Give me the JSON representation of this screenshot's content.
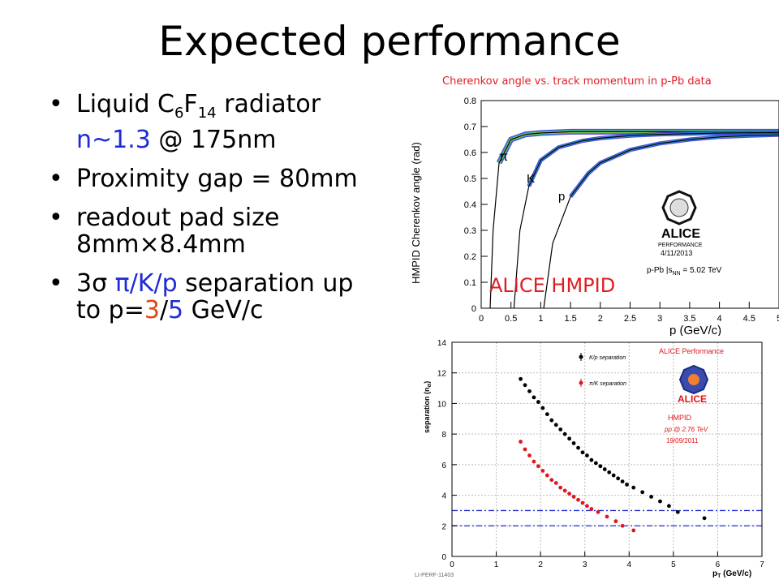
{
  "slide": {
    "title": "Expected performance",
    "bullets": [
      {
        "liquid": "Liquid C",
        "sub6": "6",
        "f": "F",
        "sub14": "14",
        "radiator": " radiator",
        "n_value": "n~1.3",
        "nm": " @ 175nm"
      },
      {
        "text": "Proximity gap = 80mm"
      },
      {
        "line1": "readout pad size",
        "line2": "8mm×8.4mm"
      },
      {
        "three_sigma": "3σ ",
        "pikp": "π/K/p",
        "sep": " separation up",
        "to": "to p=",
        "v3": "3",
        "slash": "/",
        "v5": "5",
        "unit": " GeV/c"
      }
    ],
    "top_plot": {
      "caption": "Cherenkov angle vs. track momentum in p-Pb data",
      "overlay_label": "ALICE HMPID",
      "ylabel": "HMPID Cherenkov angle (rad)",
      "xlabel": "p (GeV/c)",
      "yticks": [
        "0",
        "0.1",
        "0.2",
        "0.3",
        "0.4",
        "0.5",
        "0.6",
        "0.7",
        "0.8"
      ],
      "xticks": [
        "0",
        "0.5",
        "1",
        "1.5",
        "2",
        "2.5",
        "3",
        "3.5",
        "4",
        "4.5",
        "5"
      ],
      "particles": [
        "π",
        "K",
        "p"
      ],
      "logo_text": "ALICE",
      "performance": "PERFORMANCE",
      "date": "4/11/2013",
      "system": "p-Pb |s",
      "system_sub": "NN",
      "energy": " = 5.02 TeV"
    },
    "bottom_plot": {
      "ylabel": "separation (n",
      "ylabel_sub": "σ",
      "xlabel": "p",
      "xlabel_sub": "T",
      "xlabel_unit": " (GeV/c)",
      "yticks": [
        "0",
        "2",
        "4",
        "6",
        "8",
        "10",
        "12",
        "14"
      ],
      "xticks": [
        "0",
        "1",
        "2",
        "3",
        "4",
        "5",
        "6",
        "7"
      ],
      "legend_kp": "K/p separation",
      "legend_pik": "π/K separation",
      "header": "ALICE Performance",
      "logo_text": "ALICE",
      "hmpid": "HMPID",
      "collision": "pp @ 2.76 TeV",
      "date": "19/09/2011",
      "footer": "LI-PERF-11403",
      "colors": {
        "kp": "#000000",
        "pik": "#e0161c",
        "lines": "#1f2bd6"
      }
    }
  },
  "chart_data": [
    {
      "type": "scatter",
      "title": "Cherenkov angle vs. track momentum in p-Pb data",
      "xlabel": "p (GeV/c)",
      "ylabel": "HMPID Cherenkov angle (rad)",
      "xlim": [
        0,
        5
      ],
      "ylim": [
        0,
        0.8
      ],
      "series": [
        {
          "name": "π",
          "x": [
            0.15,
            0.2,
            0.3,
            0.5,
            0.75,
            1.0,
            1.5,
            2.0,
            3.0,
            4.0,
            5.0
          ],
          "y": [
            0.0,
            0.3,
            0.56,
            0.65,
            0.67,
            0.675,
            0.68,
            0.68,
            0.68,
            0.68,
            0.68
          ]
        },
        {
          "name": "K",
          "x": [
            0.55,
            0.65,
            0.8,
            1.0,
            1.3,
            1.7,
            2.0,
            2.5,
            3.0,
            4.0,
            5.0
          ],
          "y": [
            0.0,
            0.3,
            0.47,
            0.57,
            0.62,
            0.645,
            0.655,
            0.665,
            0.67,
            0.675,
            0.677
          ]
        },
        {
          "name": "p",
          "x": [
            1.05,
            1.2,
            1.5,
            1.8,
            2.0,
            2.5,
            3.0,
            3.5,
            4.0,
            4.5,
            5.0
          ],
          "y": [
            0.0,
            0.25,
            0.43,
            0.52,
            0.56,
            0.61,
            0.635,
            0.65,
            0.66,
            0.665,
            0.668
          ]
        }
      ]
    },
    {
      "type": "scatter",
      "title": "ALICE Performance",
      "xlabel": "p_T (GeV/c)",
      "ylabel": "separation (n_σ)",
      "xlim": [
        0,
        7
      ],
      "ylim": [
        0,
        14
      ],
      "grid": true,
      "hlines": [
        2,
        3
      ],
      "series": [
        {
          "name": "K/p separation",
          "x": [
            1.55,
            1.65,
            1.75,
            1.85,
            1.95,
            2.05,
            2.15,
            2.25,
            2.35,
            2.45,
            2.55,
            2.65,
            2.75,
            2.85,
            2.95,
            3.05,
            3.15,
            3.25,
            3.35,
            3.45,
            3.55,
            3.65,
            3.75,
            3.85,
            3.95,
            4.1,
            4.3,
            4.5,
            4.7,
            4.9,
            5.1,
            5.7
          ],
          "y": [
            11.6,
            11.2,
            10.8,
            10.4,
            10.1,
            9.7,
            9.3,
            8.9,
            8.6,
            8.3,
            8.0,
            7.7,
            7.4,
            7.1,
            6.8,
            6.6,
            6.3,
            6.1,
            5.9,
            5.7,
            5.5,
            5.3,
            5.1,
            4.9,
            4.7,
            4.5,
            4.2,
            3.9,
            3.6,
            3.3,
            2.9,
            2.5
          ]
        },
        {
          "name": "π/K separation",
          "x": [
            1.55,
            1.65,
            1.75,
            1.85,
            1.95,
            2.05,
            2.15,
            2.25,
            2.35,
            2.45,
            2.55,
            2.65,
            2.75,
            2.85,
            2.95,
            3.05,
            3.15,
            3.3,
            3.5,
            3.7,
            3.85,
            4.1
          ],
          "y": [
            7.5,
            7.0,
            6.6,
            6.2,
            5.9,
            5.6,
            5.3,
            5.0,
            4.8,
            4.5,
            4.3,
            4.1,
            3.9,
            3.7,
            3.5,
            3.3,
            3.1,
            2.9,
            2.6,
            2.3,
            2.0,
            1.7
          ]
        }
      ]
    }
  ]
}
